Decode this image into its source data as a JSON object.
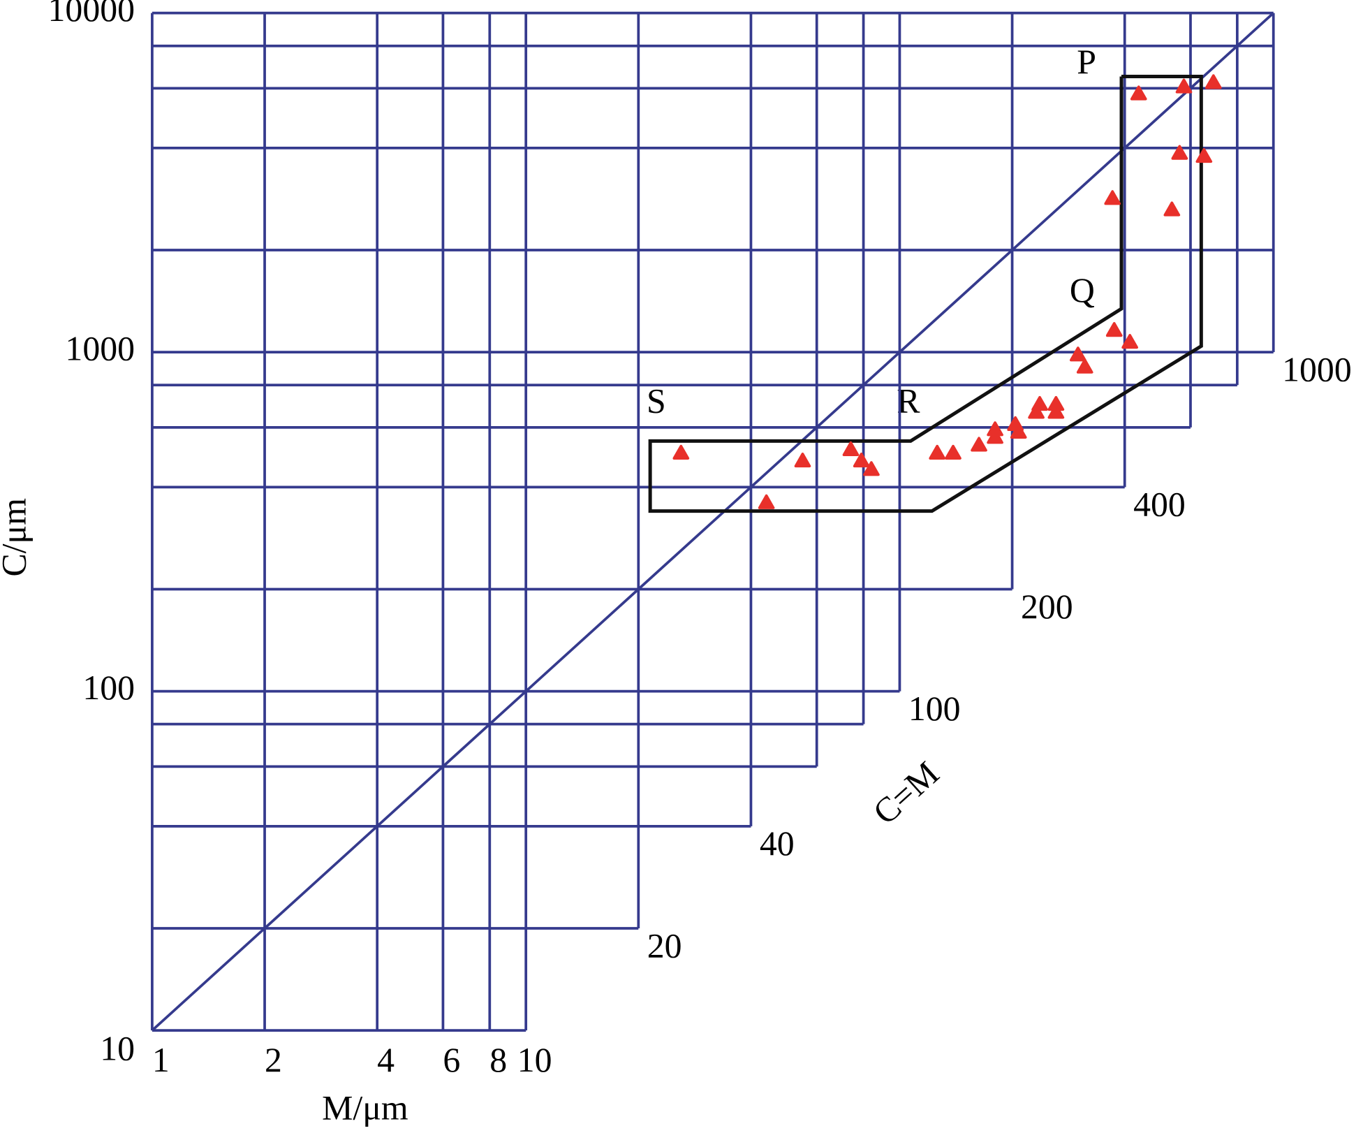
{
  "chart_data": {
    "type": "scatter",
    "xlabel": "M/μm",
    "ylabel": "C/μm",
    "diagonal_label": "C=M",
    "log_x": true,
    "log_y": true,
    "xlim": [
      1,
      1000
    ],
    "ylim": [
      10,
      10000
    ],
    "xticks": [
      1,
      2,
      4,
      6,
      8,
      10
    ],
    "yticks": [
      10,
      100,
      1000,
      10000
    ],
    "diagonal_ticks": [
      20,
      40,
      100,
      200,
      400,
      1000
    ],
    "xgrid": [
      20,
      40,
      60,
      80,
      100,
      200,
      400,
      600,
      800,
      1000
    ],
    "ygrid": [
      20,
      40,
      60,
      80,
      200,
      400,
      600,
      800,
      2000,
      4000,
      6000,
      8000
    ],
    "grid_color": "#353a8d",
    "color": "#e8302a",
    "x": [
      436,
      576,
      691,
      561,
      652,
      371,
      535,
      375,
      413,
      300,
      313,
      237,
      262,
      232,
      262,
      204,
      180,
      180,
      208,
      163,
      139,
      126,
      74,
      79,
      84,
      55,
      26,
      44
    ],
    "values": [
      5780,
      6060,
      6240,
      3860,
      3780,
      2840,
      2630,
      1160,
      1070,
      982,
      904,
      702,
      702,
      665,
      665,
      612,
      591,
      561,
      581,
      532,
      504,
      504,
      516,
      478,
      451,
      478,
      504,
      360
    ],
    "boundary": {
      "x": [
        392,
        641,
        641,
        122,
        21.5,
        21.5,
        107,
        392,
        392
      ],
      "y": [
        6500,
        6500,
        1042,
        340,
        340,
        547,
        547,
        1343,
        6500
      ]
    },
    "segment_labels": [
      "P",
      "Q",
      "R",
      "S"
    ]
  }
}
